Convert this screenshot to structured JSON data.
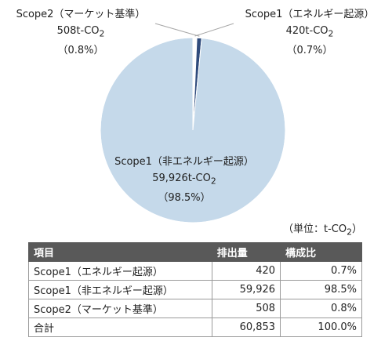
{
  "chart_data": {
    "type": "pie",
    "categories": [
      "Scope1（エネルギー起源）",
      "Scope2（マーケット基準）",
      "Scope1（非エネルギー起源）"
    ],
    "values": [
      420,
      508,
      59926
    ],
    "colors": [
      "#ffffff",
      "#2f4b7c",
      "#c5d9ea"
    ],
    "title": "",
    "unit_prefix": "t-CO",
    "unit_subscript": "2",
    "labels": [
      {
        "name": "Scope1（エネルギー起源）",
        "value": "420",
        "pct": "（0.7%）"
      },
      {
        "name": "Scope2（マーケット基準）",
        "value": "508",
        "pct": "（0.8%）"
      },
      {
        "name": "Scope1（非エネルギー起源）",
        "value": "59,926",
        "pct": "（98.5%）"
      }
    ]
  },
  "unit_note": {
    "prefix": "（単位：t-CO",
    "sub": "2",
    "suffix": "）"
  },
  "table": {
    "headers": [
      "項目",
      "排出量",
      "構成比"
    ],
    "rows": [
      {
        "item": "Scope1（エネルギー起源）",
        "emissions": "420",
        "ratio": "0.7%"
      },
      {
        "item": "Scope1（非エネルギー起源）",
        "emissions": "59,926",
        "ratio": "98.5%"
      },
      {
        "item": "Scope2（マーケット基準）",
        "emissions": "508",
        "ratio": "0.8%"
      },
      {
        "item": "合計",
        "emissions": "60,853",
        "ratio": "100.0%"
      }
    ]
  }
}
